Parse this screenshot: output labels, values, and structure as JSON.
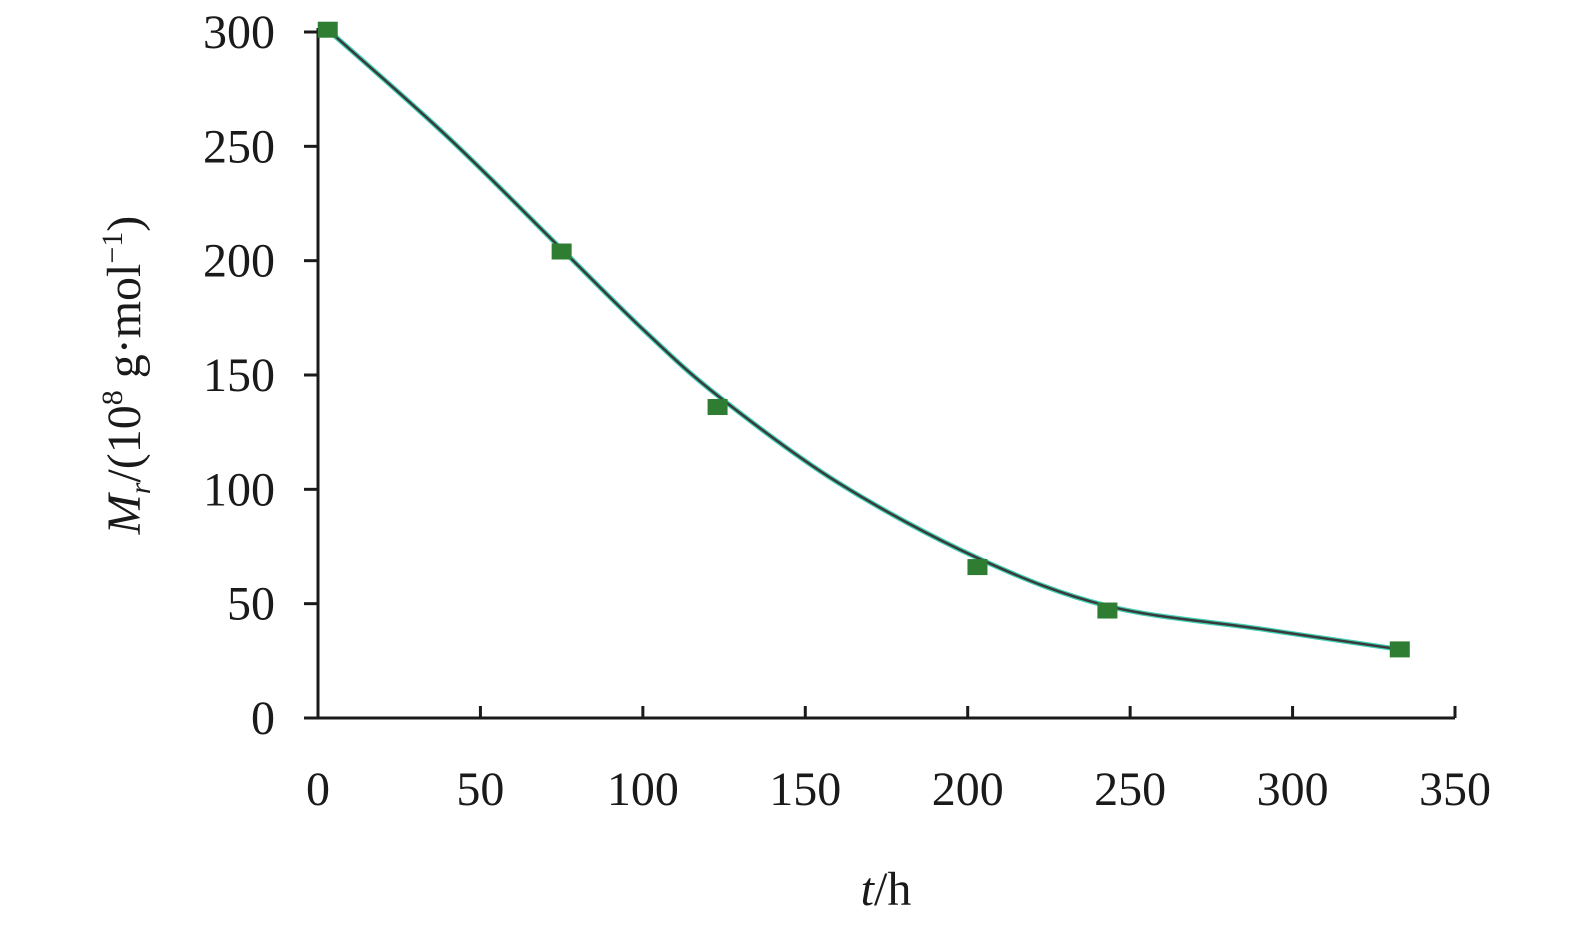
{
  "chart_data": {
    "type": "line",
    "title": "",
    "xlabel": {
      "var": "t",
      "unit": "/h"
    },
    "ylabel": {
      "var": "M",
      "sub": "r",
      "unit_pre": "/(10",
      "sup": "8",
      "unit_mid": " g·mol",
      "sup2": "−1",
      "unit_post": ")"
    },
    "xlim": [
      0,
      350
    ],
    "ylim": [
      0,
      300
    ],
    "xticks": [
      "0",
      "50",
      "100",
      "150",
      "200",
      "250",
      "300",
      "350"
    ],
    "yticks": [
      "0",
      "50",
      "100",
      "150",
      "200",
      "250",
      "300"
    ],
    "grid": false,
    "legend": "none",
    "marker_color": "#2e7d32",
    "line_color": "#3a3a3a",
    "line_highlight_color": "#22c7a8",
    "series": [
      {
        "x": [
          3,
          75,
          123,
          203,
          243,
          333
        ],
        "y": [
          301,
          204,
          136,
          66,
          47,
          30
        ]
      }
    ],
    "fit_curve": {
      "x": [
        3,
        40,
        75,
        100,
        123,
        160,
        203,
        243,
        290,
        333
      ],
      "y": [
        301,
        254,
        205,
        170,
        141,
        103,
        70,
        49,
        39,
        30
      ]
    }
  }
}
